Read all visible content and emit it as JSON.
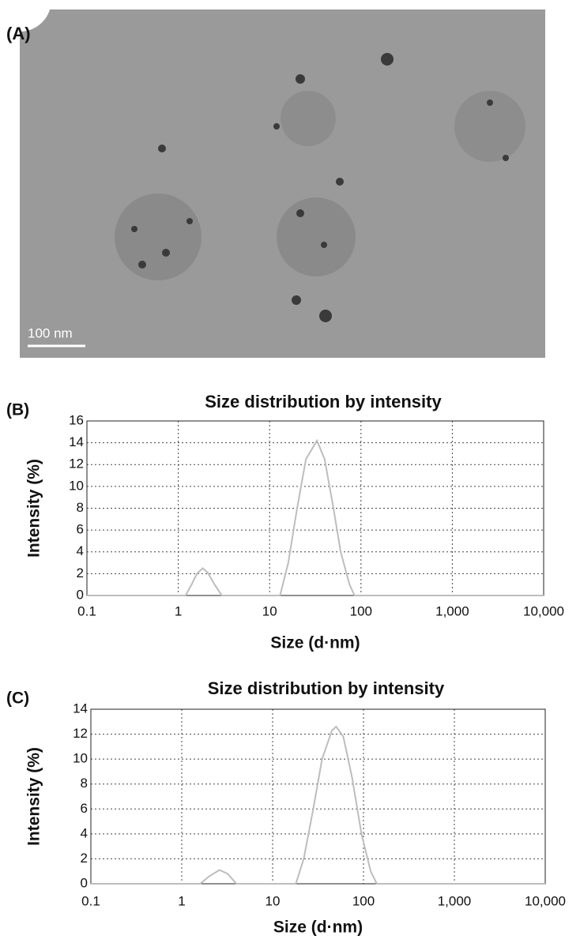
{
  "image": {
    "label": "(A)",
    "scale_bar": "100 nm"
  },
  "chart_data": [
    {
      "type": "line",
      "panel_label": "(B)",
      "title": "Size distribution by intensity",
      "xlabel": "Size (d·nm)",
      "ylabel": "Intensity (%)",
      "x": [
        0.1,
        1,
        1.2,
        1.4,
        1.6,
        1.85,
        2.1,
        2.5,
        3,
        5,
        10,
        13,
        16,
        20,
        25,
        33,
        40,
        50,
        60,
        75,
        85,
        100,
        1000,
        10000
      ],
      "series": [
        {
          "color": "#bdbdbd",
          "values": [
            0,
            0,
            0,
            1,
            2,
            2.5,
            2.1,
            1,
            0,
            0,
            0,
            0,
            3,
            8,
            12.5,
            14.2,
            12.5,
            8,
            4,
            1,
            0,
            0,
            0,
            0
          ]
        }
      ],
      "xlim": [
        0.1,
        10000
      ],
      "xticks": [
        0.1,
        1,
        10,
        100,
        {
          "value": 1000,
          "label": "1,000"
        },
        {
          "value": 10000,
          "label": "10,000"
        }
      ],
      "ylim": [
        0,
        16
      ],
      "yticks": [
        0,
        2,
        4,
        6,
        8,
        10,
        12,
        14,
        16
      ],
      "log_x": true,
      "grid": true
    },
    {
      "type": "line",
      "panel_label": "(C)",
      "title": "Size distribution by intensity",
      "xlabel": "Size (d·nm)",
      "ylabel": "Intensity (%)",
      "x": [
        0.1,
        1,
        1.6,
        2,
        2.6,
        3.2,
        4,
        10,
        18,
        22,
        28,
        35,
        45,
        50,
        60,
        75,
        95,
        120,
        140,
        1000,
        10000
      ],
      "series": [
        {
          "color": "#bdbdbd",
          "values": [
            0,
            0,
            0,
            0.6,
            1.1,
            0.8,
            0,
            0,
            0,
            2,
            6,
            10,
            12.3,
            12.6,
            11.8,
            8.5,
            4,
            1,
            0,
            0,
            0
          ]
        }
      ],
      "xlim": [
        0.1,
        10000
      ],
      "xticks": [
        0.1,
        1,
        10,
        100,
        {
          "value": 1000,
          "label": "1,000"
        },
        {
          "value": 10000,
          "label": "10,000"
        }
      ],
      "ylim": [
        0,
        14
      ],
      "yticks": [
        0,
        2,
        4,
        6,
        8,
        10,
        12,
        14
      ],
      "log_x": true,
      "grid": true
    }
  ]
}
